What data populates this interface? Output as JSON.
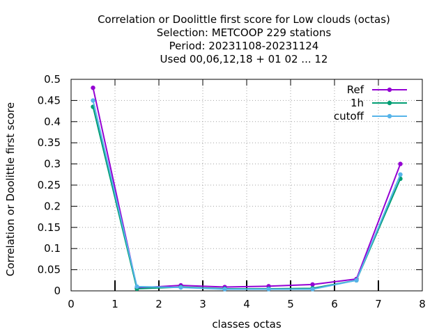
{
  "chart_data": {
    "type": "line",
    "title_lines": [
      "Correlation or Doolittle first score  for Low clouds (octas)",
      "Selection: METCOOP    229 stations",
      "Period: 20231108-20231124",
      "Used  00,06,12,18 + 01 02 ... 12"
    ],
    "xlabel": "classes octas",
    "ylabel": "Correlation or Doolittle first score",
    "xlim": [
      0,
      8
    ],
    "ylim": [
      0,
      0.5
    ],
    "x_ticks": [
      0,
      1,
      2,
      3,
      4,
      5,
      6,
      7,
      8
    ],
    "x_tick_labels": [
      "0",
      "1",
      "2",
      "3",
      "4",
      "5",
      "6",
      "7",
      "8"
    ],
    "y_ticks": [
      0,
      0.05,
      0.1,
      0.15,
      0.2,
      0.25,
      0.3,
      0.35,
      0.4,
      0.45,
      0.5
    ],
    "y_tick_labels": [
      "0",
      "0.05",
      "0.1",
      "0.15",
      "0.2",
      "0.25",
      "0.3",
      "0.35",
      "0.4",
      "0.45",
      "0.5"
    ],
    "grid": true,
    "legend_position": "top-right",
    "x": [
      0.5,
      1.5,
      2.5,
      3.5,
      4.5,
      5.5,
      6.5,
      7.5
    ],
    "series": [
      {
        "name": "Ref",
        "color": "#9400d3",
        "values": [
          0.48,
          0.007,
          0.013,
          0.009,
          0.011,
          0.015,
          0.028,
          0.3
        ]
      },
      {
        "name": "1h",
        "color": "#009e73",
        "values": [
          0.435,
          0.005,
          0.009,
          0.005,
          0.005,
          0.006,
          0.025,
          0.265
        ]
      },
      {
        "name": "cutoff",
        "color": "#56b4e9",
        "values": [
          0.45,
          0.01,
          0.008,
          0.004,
          0.004,
          0.004,
          0.025,
          0.275
        ]
      }
    ]
  }
}
